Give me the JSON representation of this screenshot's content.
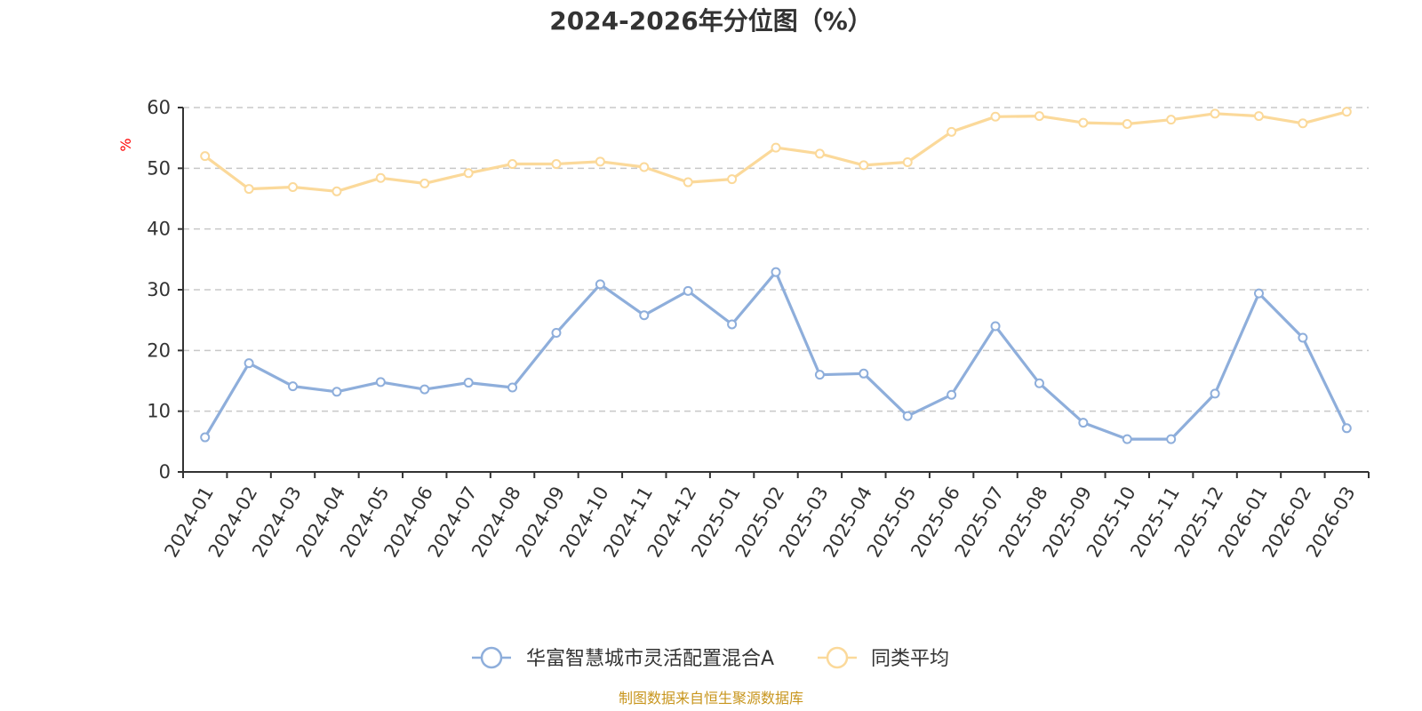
{
  "chart_data": {
    "type": "line",
    "title": "2024-2026年分位图（%）",
    "ylabel": "%",
    "xlabel": "",
    "ylim": [
      0,
      60
    ],
    "yticks": [
      0,
      10,
      20,
      30,
      40,
      50,
      60
    ],
    "grid": true,
    "legend_position": "bottom-center",
    "categories": [
      "2024-01",
      "2024-02",
      "2024-03",
      "2024-04",
      "2024-05",
      "2024-06",
      "2024-07",
      "2024-08",
      "2024-09",
      "2024-10",
      "2024-11",
      "2024-12",
      "2025-01",
      "2025-02",
      "2025-03",
      "2025-04",
      "2025-05",
      "2025-06",
      "2025-07",
      "2025-08",
      "2025-09",
      "2025-10",
      "2025-11",
      "2025-12",
      "2026-01",
      "2026-02",
      "2026-03"
    ],
    "series": [
      {
        "name": "华富智慧城市灵活配置混合A",
        "color": "#8eaedb",
        "values": [
          5.7,
          17.9,
          14.1,
          13.2,
          14.8,
          13.6,
          14.7,
          13.9,
          22.9,
          30.9,
          25.8,
          29.8,
          24.3,
          32.9,
          16.0,
          16.2,
          9.2,
          12.7,
          24.0,
          14.6,
          8.1,
          5.4,
          5.4,
          12.9,
          29.4,
          22.1,
          7.2
        ]
      },
      {
        "name": "同类平均",
        "color": "#fbd99a",
        "values": [
          52.0,
          46.6,
          46.9,
          46.2,
          48.4,
          47.5,
          49.2,
          50.7,
          50.7,
          51.1,
          50.2,
          47.7,
          48.2,
          53.4,
          52.4,
          50.5,
          51.0,
          56.0,
          58.5,
          58.6,
          57.5,
          57.3,
          58.0,
          59.0,
          58.6,
          57.4,
          59.3
        ]
      }
    ],
    "source_note": "制图数据来自恒生聚源数据库"
  }
}
